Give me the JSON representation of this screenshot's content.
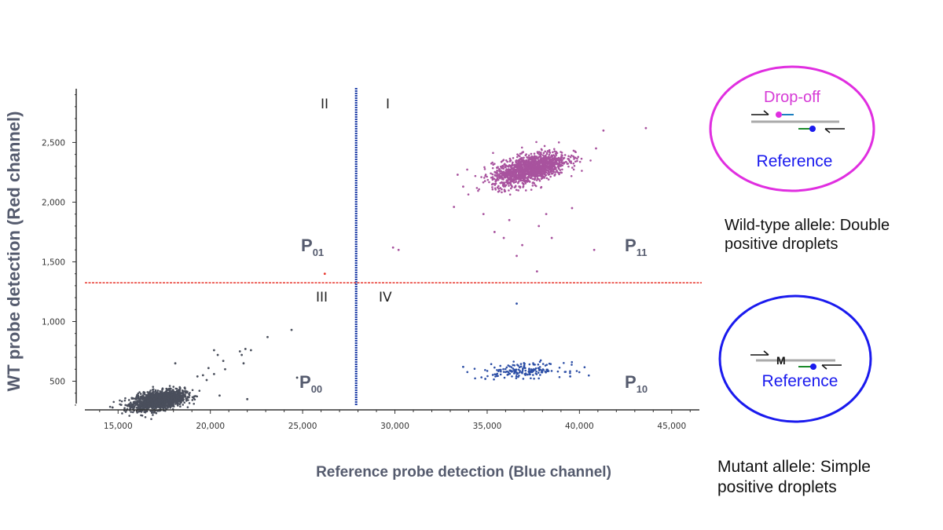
{
  "chart_data": {
    "type": "scatter",
    "xlabel": "Reference probe detection (Blue channel)",
    "ylabel": "WT probe detection (Red channel)",
    "xlim": [
      13200,
      46500
    ],
    "ylim": [
      260,
      2950
    ],
    "xticks": [
      15000,
      20000,
      25000,
      30000,
      35000,
      40000,
      45000
    ],
    "xtick_labels": [
      "15,000",
      "20,000",
      "25,000",
      "30,000",
      "35,000",
      "40,000",
      "45,000"
    ],
    "yticks": [
      500,
      1000,
      1500,
      2000,
      2500
    ],
    "ytick_labels": [
      "500",
      "1,000",
      "1,500",
      "2,000",
      "2,500"
    ],
    "grid": false,
    "thresholds": {
      "x": 27900,
      "y": 1325,
      "x_color": "#1f3fa8",
      "y_color": "#e8352c"
    },
    "quadrants": [
      {
        "label": "I",
        "population": "P",
        "subscript": "11"
      },
      {
        "label": "II",
        "population": "P",
        "subscript": "01"
      },
      {
        "label": "III",
        "population": "P",
        "subscript": "00"
      },
      {
        "label": "IV",
        "population": "P",
        "subscript": "10"
      }
    ],
    "series": [
      {
        "cluster": "double-negative",
        "color": "#4a4f5c",
        "center": [
          17200,
          340
        ],
        "sd": [
          700,
          40
        ],
        "corr": 0.4,
        "count": 1600,
        "outliers": [
          [
            24400,
            930
          ],
          [
            23100,
            870
          ],
          [
            20200,
            760
          ],
          [
            20400,
            720
          ],
          [
            21600,
            750
          ],
          [
            21700,
            720
          ],
          [
            21900,
            770
          ],
          [
            22200,
            760
          ],
          [
            20700,
            670
          ],
          [
            21800,
            650
          ],
          [
            20800,
            600
          ],
          [
            19900,
            610
          ],
          [
            20200,
            560
          ],
          [
            19300,
            540
          ],
          [
            19600,
            550
          ],
          [
            19800,
            510
          ],
          [
            18100,
            650
          ],
          [
            24700,
            530
          ],
          [
            20500,
            380
          ],
          [
            22000,
            350
          ],
          [
            14700,
            280
          ]
        ]
      },
      {
        "cluster": "double-positive",
        "color": "#a8539e",
        "center": [
          37300,
          2280
        ],
        "sd": [
          1000,
          70
        ],
        "corr": 0.55,
        "count": 1400,
        "outliers": [
          [
            29900,
            1620
          ],
          [
            30200,
            1600
          ],
          [
            43600,
            2620
          ],
          [
            40800,
            1600
          ],
          [
            37700,
            1420
          ],
          [
            33400,
            2230
          ],
          [
            33700,
            2130
          ],
          [
            33200,
            1960
          ],
          [
            34800,
            1900
          ],
          [
            36200,
            1850
          ],
          [
            37800,
            1800
          ],
          [
            38500,
            1700
          ],
          [
            36900,
            1640
          ],
          [
            35400,
            1750
          ],
          [
            39600,
            1950
          ],
          [
            40900,
            2450
          ],
          [
            41300,
            2600
          ],
          [
            36600,
            1550
          ],
          [
            38200,
            1900
          ],
          [
            35900,
            1700
          ]
        ]
      },
      {
        "cluster": "reference-only",
        "color": "#2d4fa6",
        "center": [
          37000,
          590
        ],
        "sd": [
          1100,
          30
        ],
        "corr": 0.1,
        "count": 170,
        "outliers": [
          [
            36600,
            1150
          ],
          [
            33700,
            620
          ],
          [
            39500,
            540
          ],
          [
            34900,
            520
          ]
        ]
      },
      {
        "cluster": "wt-only",
        "color": "#e8352c",
        "center": [
          26200,
          1400
        ],
        "sd": [
          0,
          0
        ],
        "corr": 0,
        "count": 0,
        "outliers": [
          [
            26200,
            1400
          ]
        ]
      }
    ]
  },
  "diagrams": {
    "wild_type": {
      "probe_label": "Drop-off",
      "reference_label": "Reference",
      "caption_line1": "Wild-type allele: Double",
      "caption_line2": "positive droplets",
      "circle_color": "#e02ee0",
      "probe_color": "#d63ad6"
    },
    "mutant": {
      "mutation_label": "M",
      "reference_label": "Reference",
      "caption_line1": "Mutant allele: Simple",
      "caption_line2": "positive droplets",
      "circle_color": "#1a1aee",
      "reference_color": "#1a1aee"
    }
  }
}
